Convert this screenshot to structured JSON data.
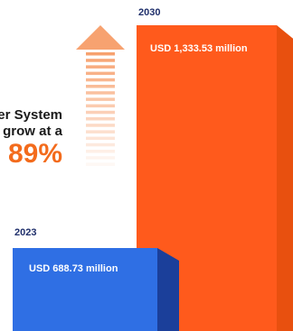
{
  "colors": {
    "bar_2023": "#2f6fe4",
    "bar_2023_side": "#1b3f9a",
    "bar_2030": "#ff5a1c",
    "bar_2030_side": "#e8500f",
    "arrow": "#f7a270",
    "text_dark": "#1a1a1a",
    "year_text": "#1f2f6b",
    "accent": "#f36b1c"
  },
  "headline": {
    "line1": "er System",
    "line2": "grow at a",
    "big": "89%"
  },
  "chart_data": {
    "type": "bar",
    "categories": [
      "2023",
      "2030"
    ],
    "values": [
      688.73,
      1333.53
    ],
    "value_labels": [
      "USD 688.73 million",
      "USD 1,333.53 million"
    ],
    "title": "",
    "xlabel": "",
    "ylabel": "",
    "ylim": [
      0,
      1400
    ]
  }
}
